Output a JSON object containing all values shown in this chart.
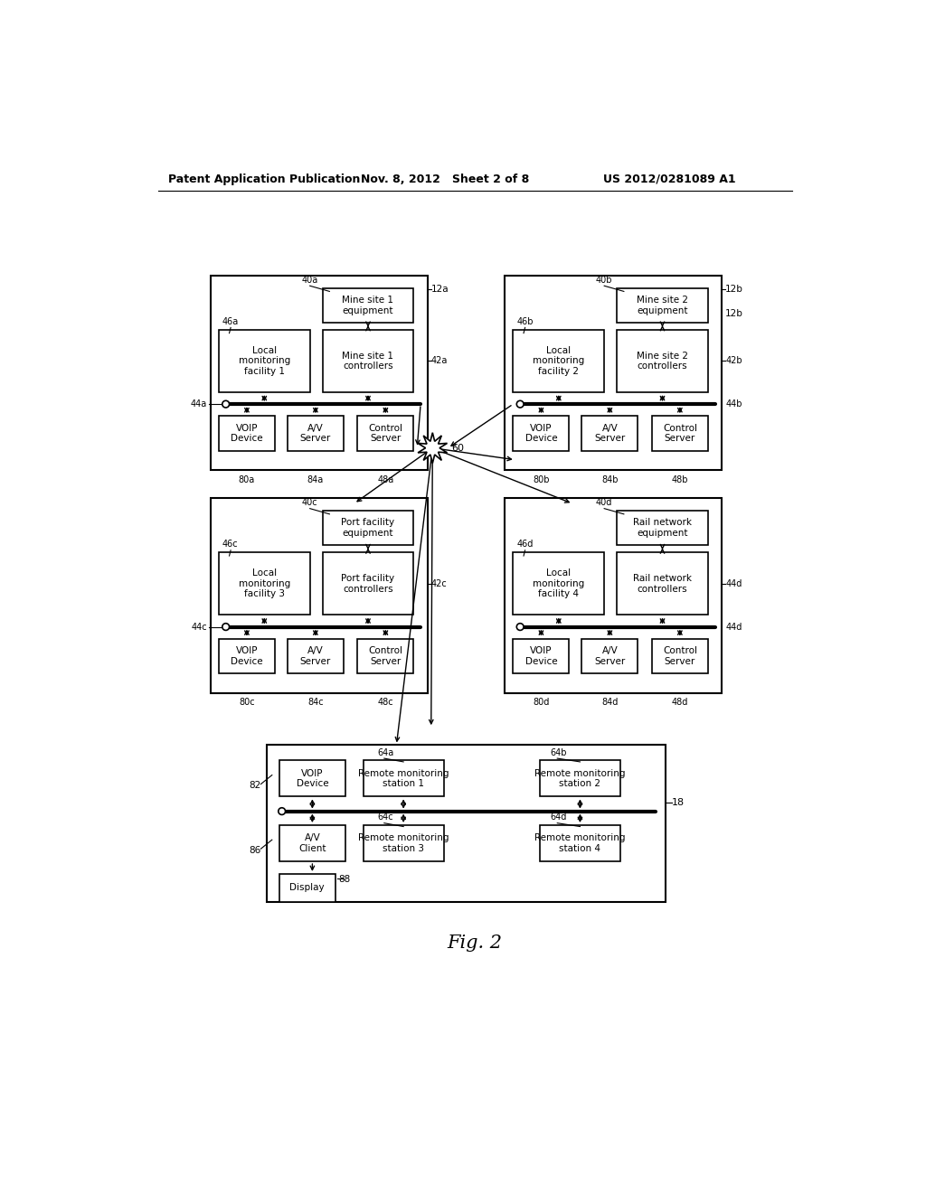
{
  "header_left": "Patent Application Publication",
  "header_mid": "Nov. 8, 2012   Sheet 2 of 8",
  "header_right": "US 2012/0281089 A1",
  "fig_label": "Fig. 2",
  "bg_color": "#ffffff",
  "text_color": "#000000"
}
